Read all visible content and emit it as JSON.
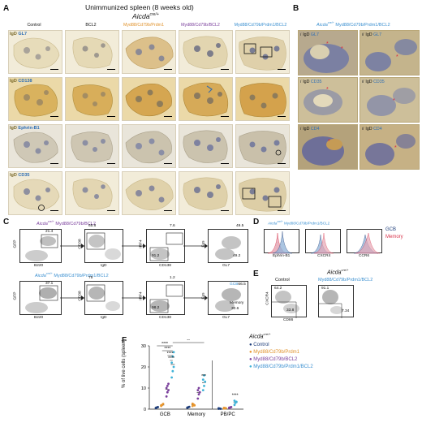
{
  "panels": {
    "a": "A",
    "b": "B",
    "c": "C",
    "d": "D",
    "e": "E",
    "f": "F"
  },
  "panel_a": {
    "title": "Unimmunized spleen (8 weeks old)",
    "genotype_base": "Aicda",
    "genotype_sup": "cre/+",
    "columns": [
      "Control",
      "BCL2",
      "Myd88/Cd79b/Prdm1",
      "Myd88/Cd79b/BCL2",
      "Myd88/Cd79b/Prdm1/BCL2"
    ],
    "rows": [
      {
        "a": "IgD",
        "b": "GL7"
      },
      {
        "a": "IgD",
        "b": "CD138"
      },
      {
        "a": "IgD",
        "b": "Ephrin-B1"
      },
      {
        "a": "IgD",
        "b": "CD35"
      }
    ]
  },
  "panel_b": {
    "header_base": "Aicda",
    "header_sup": "cre/+",
    "header_rest": "Myd88/Cd79b/Prdm1/BCL2",
    "rows": [
      {
        "i": "i",
        "ii": "ii",
        "a": "IgD",
        "b": "GL7"
      },
      {
        "i": "i",
        "ii": "ii",
        "a": "IgD",
        "b": "CD35"
      },
      {
        "i": "i",
        "ii": "ii",
        "a": "IgD",
        "b": "CD4"
      }
    ]
  },
  "panel_c": {
    "top_label_base": "Aicda",
    "top_label_sup": "cre/+",
    "top_label_rest": "Myd88/Cd79b/BCL2",
    "bottom_label_base": "Aicda",
    "bottom_label_sup": "cre/+",
    "bottom_label_rest": "Myd88/Cd79b/Prdm1/BCL2",
    "top": {
      "p1": {
        "x": "B220",
        "y": "GFP",
        "g1": "21.4"
      },
      "p2": {
        "x": "IgD",
        "y": "CD38",
        "g1": "65.6"
      },
      "p3": {
        "x": "CD138",
        "y": "IRF4",
        "g1": "7.6",
        "g2": "91.2"
      },
      "p4": {
        "x": "GL7",
        "y": "Fas",
        "g1": "49.5",
        "g2": "49.2"
      }
    },
    "bottom": {
      "p1": {
        "x": "B220",
        "y": "GFP",
        "g1": "37.1"
      },
      "p2": {
        "x": "IgD",
        "y": "CD38",
        "g1": "75"
      },
      "p3": {
        "x": "CD138",
        "y": "IRF4",
        "g1": "1.2",
        "g2": "98.2"
      },
      "p4": {
        "x": "GL7",
        "y": "Fas",
        "g1": "GCB",
        "g1v": "66.5",
        "g2": "Memory",
        "g2v": "30.6"
      }
    }
  },
  "panel_d": {
    "header_base": "Aicda",
    "header_sup": "cre/+",
    "header_rest": "Myd88/Cd79b/Prdm1/BCL2",
    "plots": [
      "Ephrin-B1",
      "CXCR4",
      "CCR6"
    ],
    "legend": [
      {
        "name": "GCB",
        "color": "#5a86c2"
      },
      {
        "name": "Memory",
        "color": "#e0566e"
      }
    ]
  },
  "panel_e": {
    "header_base": "Aicda",
    "header_sup": "cre/+",
    "left_label": "Control",
    "right_label": "Myd88/Cd79b/Prdm1/BCL2",
    "x": "CD86",
    "y": "CXCR4",
    "left": {
      "g1": "64.2",
      "g2": "33.8"
    },
    "right": {
      "g1": "91.1",
      "g2": "7.34"
    }
  },
  "panel_f": {
    "ylabel": "% of live cells (spleen)",
    "yticks": [
      "0",
      "10",
      "20",
      "30"
    ],
    "categories": [
      "GCB",
      "Memory",
      "PB/PC"
    ],
    "legend_base": "Aicda",
    "legend_sup": "cre/+",
    "legend": [
      {
        "name": "Control",
        "color": "#1d3d7a"
      },
      {
        "name": "Myd88/Cd79b/Prdm1",
        "color": "#e8962e"
      },
      {
        "name": "Myd88/Cd79b/BCL2",
        "color": "#7a3f9c"
      },
      {
        "name": "Myd88/Cd79b/Prdm1/BCL2",
        "color": "#3fb3d8"
      }
    ],
    "sig": [
      "****",
      "****",
      "****",
      "****",
      "**",
      "***",
      "****"
    ]
  },
  "chart_data": {
    "type": "scatter",
    "categories": [
      "GCB",
      "Memory",
      "PB/PC"
    ],
    "ylabel": "% of live cells (spleen)",
    "ylim": [
      0,
      30
    ],
    "series": [
      {
        "name": "Control",
        "color": "#1d3d7a",
        "values": [
          [
            0.5,
            0.8,
            1.0,
            0.6
          ],
          [
            0.6,
            0.9,
            1.1,
            0.7
          ],
          [
            0.2,
            0.3,
            0.2,
            0.4
          ]
        ]
      },
      {
        "name": "Myd88/Cd79b/Prdm1",
        "color": "#e8962e",
        "values": [
          [
            1.5,
            2.0,
            2.5,
            1.8
          ],
          [
            1.5,
            2.2,
            1.8,
            2.6
          ],
          [
            0.3,
            0.5,
            0.4,
            0.6
          ]
        ]
      },
      {
        "name": "Myd88/Cd79b/BCL2",
        "color": "#7a3f9c",
        "values": [
          [
            6,
            8,
            9,
            10,
            11,
            12
          ],
          [
            5,
            7,
            8,
            9,
            10
          ],
          [
            0.5,
            0.8,
            1.0,
            0.7
          ]
        ]
      },
      {
        "name": "Myd88/Cd79b/Prdm1/BCL2",
        "color": "#3fb3d8",
        "values": [
          [
            15,
            18,
            20,
            22,
            25,
            27
          ],
          [
            9,
            11,
            13,
            14,
            16
          ],
          [
            2,
            3,
            3.5,
            4
          ]
        ]
      }
    ]
  }
}
